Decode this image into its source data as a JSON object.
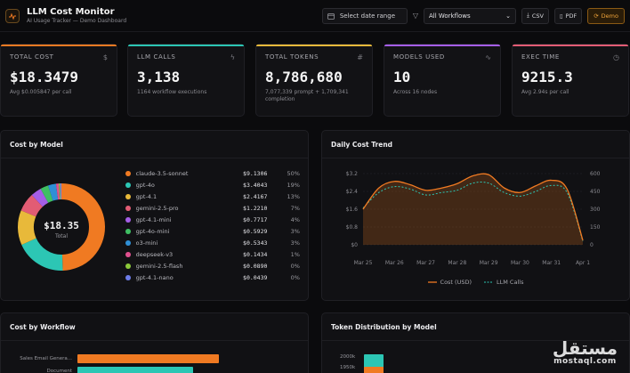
{
  "header": {
    "title": "LLM Cost Monitor",
    "subtitle": "AI Usage Tracker — Demo Dashboard",
    "date_range": "Select date range",
    "workflow": "All Workflows",
    "csv": "CSV",
    "pdf": "PDF",
    "demo": "Demo"
  },
  "kpis": [
    {
      "label": "TOTAL COST",
      "value": "$18.3479",
      "sub": "Avg $0.005847 per call",
      "accent": "#f07a22",
      "icon": "dollar-icon"
    },
    {
      "label": "LLM CALLS",
      "value": "3,138",
      "sub": "1164 workflow executions",
      "accent": "#2cc6b4",
      "icon": "bolt-icon"
    },
    {
      "label": "TOTAL TOKENS",
      "value": "8,786,680",
      "sub": "7,077,339 prompt + 1,709,341 completion",
      "accent": "#e8b93a",
      "icon": "hash-icon"
    },
    {
      "label": "MODELS USED",
      "value": "10",
      "sub": "Across 16 nodes",
      "accent": "#a55ee6",
      "icon": "activity-icon"
    },
    {
      "label": "EXEC TIME",
      "value": "9215.3",
      "sub": "Avg 2.94s per call",
      "accent": "#e25c74",
      "icon": "clock-icon"
    }
  ],
  "cost_by_model": {
    "title": "Cost by Model",
    "center_value": "$18.35",
    "center_label": "Total",
    "items": [
      {
        "name": "claude-3.5-sonnet",
        "cost": "$9.1306",
        "pct": "50%",
        "share": 50,
        "color": "#f07a22"
      },
      {
        "name": "gpt-4o",
        "cost": "$3.4043",
        "pct": "19%",
        "share": 19,
        "color": "#2cc6b4"
      },
      {
        "name": "gpt-4.1",
        "cost": "$2.4167",
        "pct": "13%",
        "share": 13,
        "color": "#e8b93a"
      },
      {
        "name": "gemini-2.5-pro",
        "cost": "$1.2210",
        "pct": "7%",
        "share": 7,
        "color": "#e25c74"
      },
      {
        "name": "gpt-4.1-mini",
        "cost": "$0.7717",
        "pct": "4%",
        "share": 4,
        "color": "#a55ee6"
      },
      {
        "name": "gpt-4o-mini",
        "cost": "$0.5929",
        "pct": "3%",
        "share": 3,
        "color": "#3fbf63"
      },
      {
        "name": "o3-mini",
        "cost": "$0.5343",
        "pct": "3%",
        "share": 3,
        "color": "#2f8fd6"
      },
      {
        "name": "deepseek-v3",
        "cost": "$0.1434",
        "pct": "1%",
        "share": 1,
        "color": "#e0508f"
      },
      {
        "name": "gemini-2.5-flash",
        "cost": "$0.0890",
        "pct": "0%",
        "share": 0.5,
        "color": "#8cc93a"
      },
      {
        "name": "gpt-4.1-nano",
        "cost": "$0.0439",
        "pct": "0%",
        "share": 0.5,
        "color": "#6d7ce8"
      }
    ]
  },
  "chart_data": {
    "type": "line",
    "title": "Daily Cost Trend",
    "categories": [
      "Mar 25",
      "Mar 26",
      "Mar 27",
      "Mar 28",
      "Mar 29",
      "Mar 30",
      "Mar 31",
      "Apr 1"
    ],
    "y_left_ticks": [
      "$3.2",
      "$2.4",
      "$1.6",
      "$0.8",
      "$0"
    ],
    "y_right_ticks": [
      "600",
      "450",
      "300",
      "150",
      "0"
    ],
    "ylim_left": [
      0,
      3.2
    ],
    "ylim_right": [
      0,
      600
    ],
    "series": [
      {
        "name": "Cost (USD)",
        "axis": "left",
        "color": "#f07a22",
        "x": [
          0,
          0.5,
          1,
          1.5,
          2,
          2.5,
          3,
          3.5,
          4,
          4.5,
          5,
          5.5,
          6,
          6.5,
          7
        ],
        "values": [
          1.6,
          2.55,
          2.85,
          2.7,
          2.45,
          2.55,
          2.75,
          3.1,
          3.15,
          2.55,
          2.35,
          2.65,
          2.9,
          2.5,
          0.2
        ]
      },
      {
        "name": "LLM Calls",
        "axis": "right",
        "color": "#2cc6b4",
        "x": [
          0,
          0.5,
          1,
          1.5,
          2,
          2.5,
          3,
          3.5,
          4,
          4.5,
          5,
          5.5,
          6,
          6.5,
          7
        ],
        "values": [
          310,
          440,
          490,
          470,
          420,
          440,
          460,
          520,
          520,
          440,
          410,
          450,
          500,
          440,
          30
        ]
      }
    ]
  },
  "cost_by_workflow": {
    "title": "Cost by Workflow",
    "rows": [
      {
        "label": "Sales Email Genera...",
        "share": 0.86,
        "color": "#f07a22"
      },
      {
        "label": "Document",
        "share": 0.7,
        "color": "#2cc6b4"
      }
    ]
  },
  "token_distribution": {
    "title": "Token Distribution by Model",
    "ticks": [
      "2000k",
      "1950k"
    ]
  },
  "watermark": {
    "ar": "مستقل",
    "en": "mostaql.com"
  }
}
